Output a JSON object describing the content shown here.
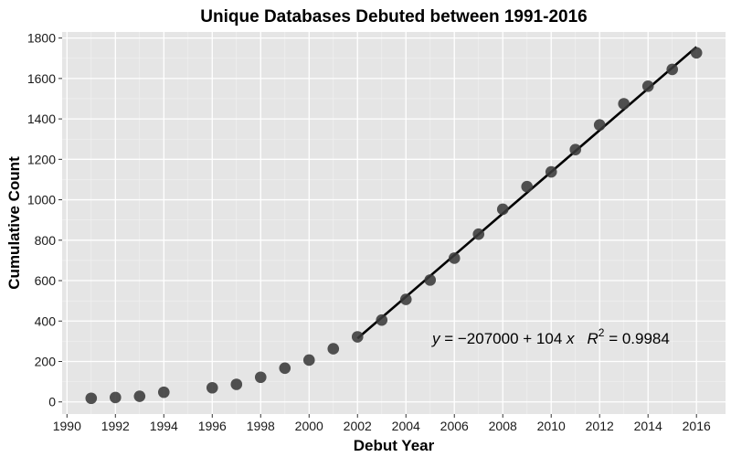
{
  "chart_data": {
    "type": "scatter",
    "title": "Unique Databases Debuted between 1991-2016",
    "xlabel": "Debut Year",
    "ylabel": "Cumulative Count",
    "xlim": [
      1989.8,
      2017.2
    ],
    "ylim": [
      -60,
      1830
    ],
    "xticks": [
      1990,
      1992,
      1994,
      1996,
      1998,
      2000,
      2002,
      2004,
      2006,
      2008,
      2010,
      2012,
      2014,
      2016
    ],
    "yticks": [
      0,
      200,
      400,
      600,
      800,
      1000,
      1200,
      1400,
      1600,
      1800
    ],
    "grid": true,
    "background": "#e5e5e5",
    "point_color": "#3a3a3a",
    "line_color": "#000000",
    "series": [
      {
        "x": [
          1991,
          1992,
          1993,
          1994,
          1996,
          1997,
          1998,
          1999,
          2000,
          2001,
          2002,
          2003,
          2004,
          2005,
          2006,
          2007,
          2008,
          2009,
          2010,
          2011,
          2012,
          2013,
          2014,
          2015,
          2016
        ],
        "y": [
          18,
          22,
          28,
          48,
          70,
          87,
          122,
          167,
          207,
          263,
          322,
          405,
          507,
          603,
          711,
          830,
          953,
          1065,
          1138,
          1248,
          1370,
          1475,
          1562,
          1645,
          1727
        ]
      }
    ],
    "fit_line": {
      "x": [
        2002,
        2016
      ],
      "y": [
        314,
        1756
      ]
    },
    "annotation": {
      "eq_y": "y",
      "eq_rhs": " = −207000 + 104 ",
      "eq_x": "x",
      "r2_r": "R",
      "r2_sup": "2",
      "r2_rhs": " = 0.9984"
    }
  }
}
